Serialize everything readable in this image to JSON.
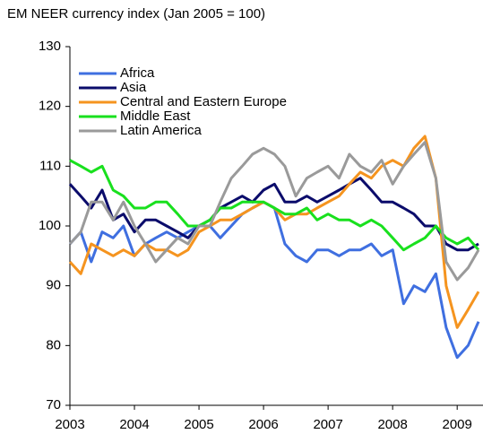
{
  "chart_data": {
    "type": "line",
    "title": "EM NEER currency index (Jan 2005 = 100)",
    "x": [
      2003,
      2003.17,
      2003.33,
      2003.5,
      2003.67,
      2003.83,
      2004,
      2004.17,
      2004.33,
      2004.5,
      2004.67,
      2004.83,
      2005,
      2005.17,
      2005.33,
      2005.5,
      2005.67,
      2005.83,
      2006,
      2006.17,
      2006.33,
      2006.5,
      2006.67,
      2006.83,
      2007,
      2007.17,
      2007.33,
      2007.5,
      2007.67,
      2007.83,
      2008,
      2008.17,
      2008.33,
      2008.5,
      2008.67,
      2008.83,
      2009,
      2009.17,
      2009.33
    ],
    "xlim": [
      2003,
      2009.4
    ],
    "xticks": [
      2003,
      2004,
      2005,
      2006,
      2007,
      2008,
      2009
    ],
    "ylim": [
      70,
      130
    ],
    "yticks": [
      70,
      80,
      90,
      100,
      110,
      120,
      130
    ],
    "grid": false,
    "legend": "upper left",
    "series": [
      {
        "name": "Africa",
        "color": "#3f6fe0",
        "values": [
          97,
          99,
          94,
          99,
          98,
          100,
          95,
          97,
          98,
          99,
          98,
          99,
          100,
          100,
          98,
          100,
          102,
          103,
          104,
          103,
          97,
          95,
          94,
          96,
          96,
          95,
          96,
          96,
          97,
          95,
          96,
          87,
          90,
          89,
          92,
          83,
          78,
          80,
          84
        ]
      },
      {
        "name": "Asia",
        "color": "#0b0c6b",
        "values": [
          107,
          105,
          103,
          106,
          101,
          102,
          99,
          101,
          101,
          100,
          99,
          98,
          100,
          101,
          103,
          104,
          105,
          104,
          106,
          107,
          104,
          104,
          105,
          104,
          105,
          106,
          107,
          108,
          106,
          104,
          104,
          103,
          102,
          100,
          100,
          97,
          96,
          96,
          97
        ]
      },
      {
        "name": "Central and Eastern Europe",
        "color": "#f5941f",
        "values": [
          94,
          92,
          97,
          96,
          95,
          96,
          95,
          97,
          96,
          96,
          95,
          96,
          99,
          100,
          101,
          101,
          102,
          103,
          104,
          103,
          101,
          102,
          102,
          103,
          104,
          105,
          107,
          109,
          108,
          110,
          111,
          110,
          113,
          115,
          108,
          90,
          83,
          86,
          89
        ]
      },
      {
        "name": "Middle East",
        "color": "#19e01e",
        "values": [
          111,
          110,
          109,
          110,
          106,
          105,
          103,
          103,
          104,
          104,
          102,
          100,
          100,
          101,
          103,
          103,
          104,
          104,
          104,
          103,
          102,
          102,
          103,
          101,
          102,
          101,
          101,
          100,
          101,
          100,
          98,
          96,
          97,
          98,
          100,
          98,
          97,
          98,
          96
        ]
      },
      {
        "name": "Latin America",
        "color": "#9a9a9a",
        "values": [
          97,
          99,
          104,
          104,
          101,
          104,
          100,
          97,
          94,
          96,
          98,
          97,
          100,
          100,
          104,
          108,
          110,
          112,
          113,
          112,
          110,
          105,
          108,
          109,
          110,
          108,
          112,
          110,
          109,
          111,
          107,
          110,
          112,
          114,
          108,
          94,
          91,
          93,
          96
        ]
      }
    ]
  }
}
